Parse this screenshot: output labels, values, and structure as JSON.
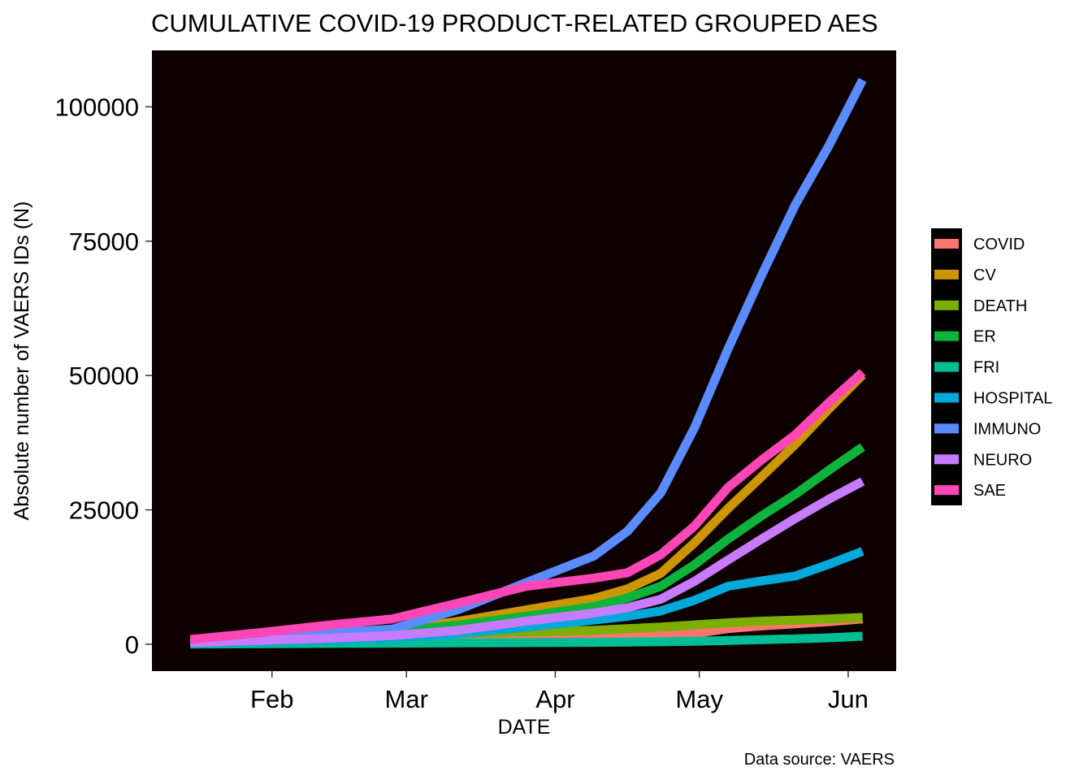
{
  "chart_data": {
    "type": "line",
    "title": "CUMULATIVE COVID-19 PRODUCT-RELATED GROUPED AES",
    "xlabel": "DATE",
    "ylabel": "Absolute number of VAERS IDs (N)",
    "caption": "Data source: VAERS",
    "x_ticks": [
      "2021-02-01",
      "2021-03-01",
      "2021-04-01",
      "2021-05-01",
      "2021-06-01"
    ],
    "x_tick_labels": [
      "Feb",
      "Mar",
      "Apr",
      "May",
      "Jun"
    ],
    "xlim": [
      "2021-01-07",
      "2021-06-11"
    ],
    "ylim": [
      -5000,
      110500
    ],
    "y_ticks": [
      0,
      25000,
      50000,
      75000,
      100000
    ],
    "y_tick_labels": [
      "0",
      "25000",
      "50000",
      "75000",
      "100000"
    ],
    "background": "#0f0000",
    "legend_position": "right",
    "x": [
      "2021-01-15",
      "2021-01-29",
      "2021-02-12",
      "2021-02-26",
      "2021-03-12",
      "2021-03-26",
      "2021-04-09",
      "2021-04-16",
      "2021-04-23",
      "2021-04-30",
      "2021-05-07",
      "2021-05-14",
      "2021-05-21",
      "2021-05-28",
      "2021-06-04"
    ],
    "series": [
      {
        "name": "COVID",
        "color": "#f8766d",
        "values": [
          200,
          500,
          800,
          1000,
          1200,
          1300,
          1500,
          1600,
          1700,
          2000,
          2900,
          3400,
          3800,
          4200,
          4700
        ]
      },
      {
        "name": "CV",
        "color": "#cd9600",
        "values": [
          400,
          1000,
          1700,
          2500,
          4300,
          6400,
          8500,
          10300,
          13200,
          18900,
          25300,
          31200,
          37200,
          43800,
          50100
        ]
      },
      {
        "name": "DEATH",
        "color": "#7cae00",
        "values": [
          200,
          600,
          1000,
          1500,
          2000,
          2300,
          2600,
          2900,
          3200,
          3600,
          4000,
          4300,
          4500,
          4700,
          5000
        ]
      },
      {
        "name": "ER",
        "color": "#0cb43c",
        "values": [
          300,
          900,
          1600,
          2400,
          3600,
          5200,
          7000,
          8600,
          10800,
          14800,
          19600,
          23900,
          27900,
          32400,
          36700
        ]
      },
      {
        "name": "FRI",
        "color": "#00be94",
        "values": [
          50,
          100,
          150,
          200,
          250,
          300,
          350,
          400,
          450,
          550,
          700,
          850,
          1000,
          1200,
          1500
        ]
      },
      {
        "name": "HOSPITAL",
        "color": "#00a9d9",
        "values": [
          200,
          500,
          800,
          1200,
          2000,
          3200,
          4500,
          5200,
          6200,
          8200,
          10800,
          11800,
          12700,
          14900,
          17300
        ]
      },
      {
        "name": "IMMUNO",
        "color": "#5b8cff",
        "values": [
          700,
          1400,
          2100,
          2800,
          6500,
          11500,
          16400,
          21000,
          28200,
          40300,
          55000,
          68700,
          81800,
          92800,
          105000
        ]
      },
      {
        "name": "NEURO",
        "color": "#c77cff",
        "values": [
          300,
          700,
          1100,
          1600,
          2600,
          4300,
          5800,
          6800,
          8400,
          11700,
          15700,
          19600,
          23400,
          27000,
          30300
        ]
      },
      {
        "name": "SAE",
        "color": "#ff46b6",
        "values": [
          900,
          2100,
          3500,
          4700,
          7700,
          10800,
          12300,
          13300,
          16700,
          22000,
          29200,
          34300,
          39000,
          45000,
          50600
        ]
      }
    ]
  }
}
